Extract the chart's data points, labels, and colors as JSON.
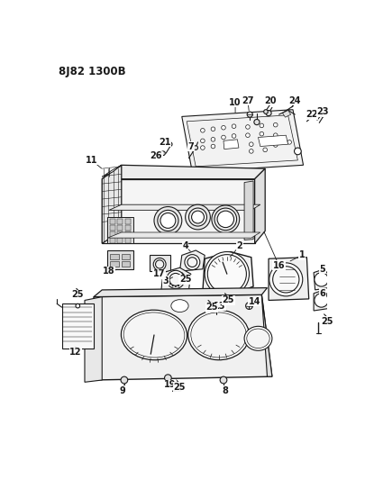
{
  "title": "8J82 1300B",
  "bg_color": "#ffffff",
  "line_color": "#1a1a1a",
  "title_fontsize": 8.5,
  "label_fontsize": 7,
  "fig_width": 4.05,
  "fig_height": 5.33,
  "dpi": 100
}
